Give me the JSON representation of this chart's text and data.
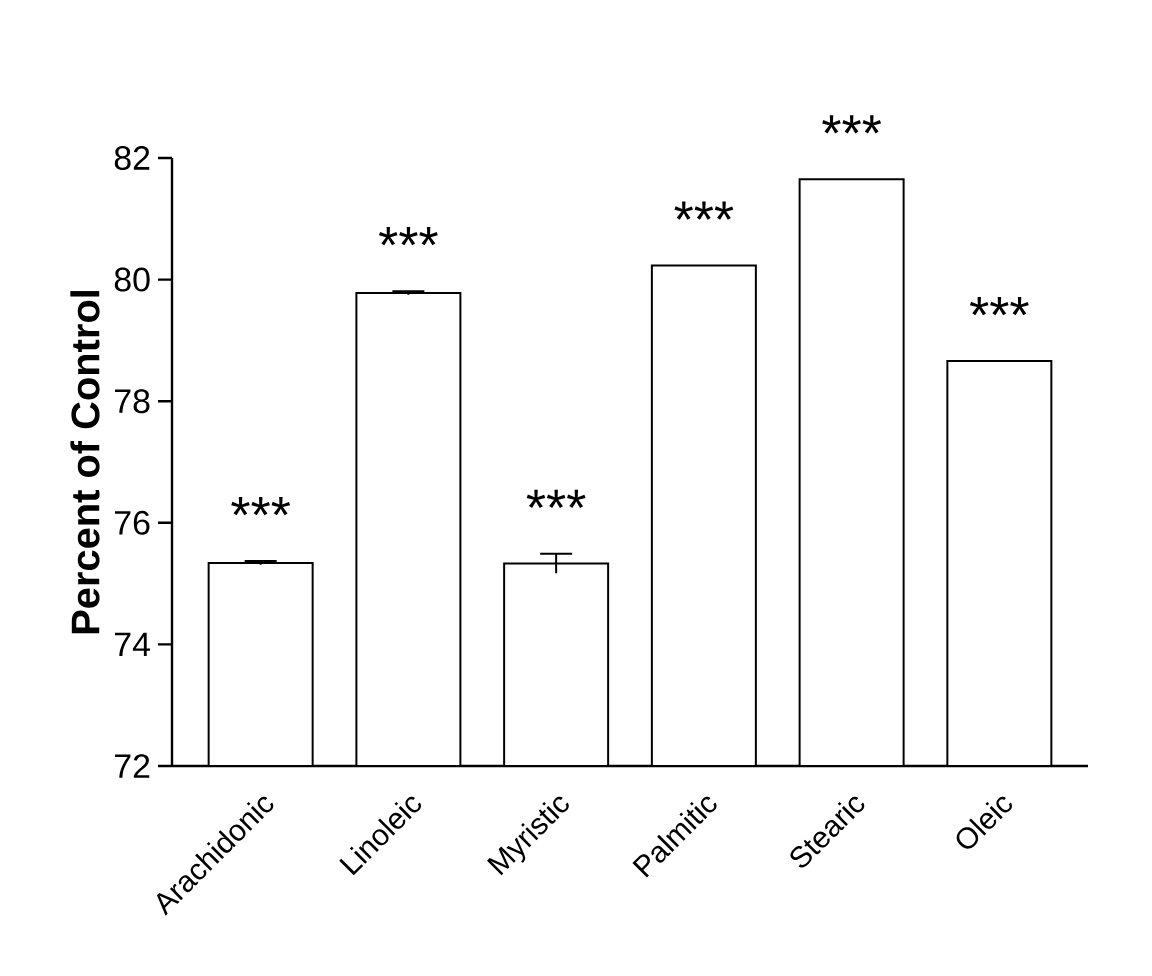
{
  "chart_data": {
    "type": "bar",
    "ylabel": "Percent of Control",
    "categories": [
      "Arachidonic",
      "Linoleic",
      "Myristic",
      "Palmitic",
      "Stearic",
      "Oleic"
    ],
    "values": [
      75.34,
      79.78,
      75.33,
      80.23,
      81.65,
      78.66
    ],
    "errors": [
      0.03,
      0.03,
      0.16,
      null,
      null,
      null
    ],
    "color": "#ffffff",
    "ylim": [
      72,
      82
    ],
    "yticks": [
      72,
      74,
      76,
      78,
      80,
      82
    ],
    "annotations": [
      {
        "text": "***",
        "x": "Arachidonic",
        "y": 75.37
      },
      {
        "text": "***",
        "x": "Linoleic",
        "y": 79.81
      },
      {
        "text": "***",
        "x": "Myristic",
        "y": 75.49
      },
      {
        "text": "***",
        "x": "Palmitic",
        "y": 80.23
      },
      {
        "text": "***",
        "x": "Stearic",
        "y": 81.65
      },
      {
        "text": "***",
        "x": "Oleic",
        "y": 78.66
      }
    ]
  }
}
